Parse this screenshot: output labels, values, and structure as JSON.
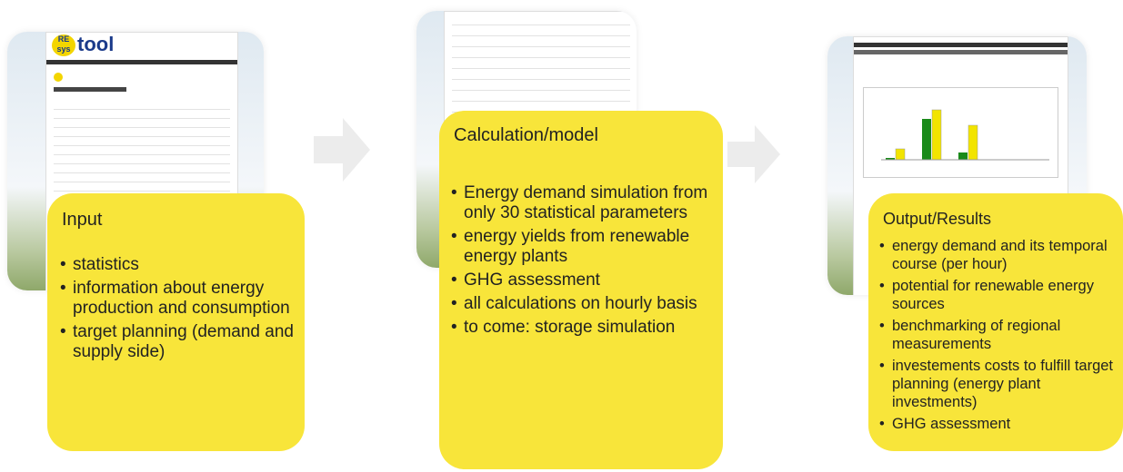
{
  "logo": {
    "re": "RE",
    "sys": "sys",
    "tool": "tool"
  },
  "panels": [
    {
      "title": "Input",
      "items": [
        "statistics",
        "information about energy production and consumption",
        "target planning (demand and supply side)"
      ]
    },
    {
      "title": "Calculation/model",
      "items": [
        "Energy demand simulation from only 30 statistical parameters",
        "energy yields from renewable energy plants",
        "GHG assessment",
        "all calculations on hourly basis",
        "to come: storage simulation"
      ]
    },
    {
      "title": "Output/Results",
      "items": [
        "energy demand and its temporal course (per hour)",
        "potential for renewable energy sources",
        "benchmarking of regional measurements",
        "investements costs to fulfill target planning (energy plant investments)",
        "GHG assessment"
      ]
    }
  ]
}
